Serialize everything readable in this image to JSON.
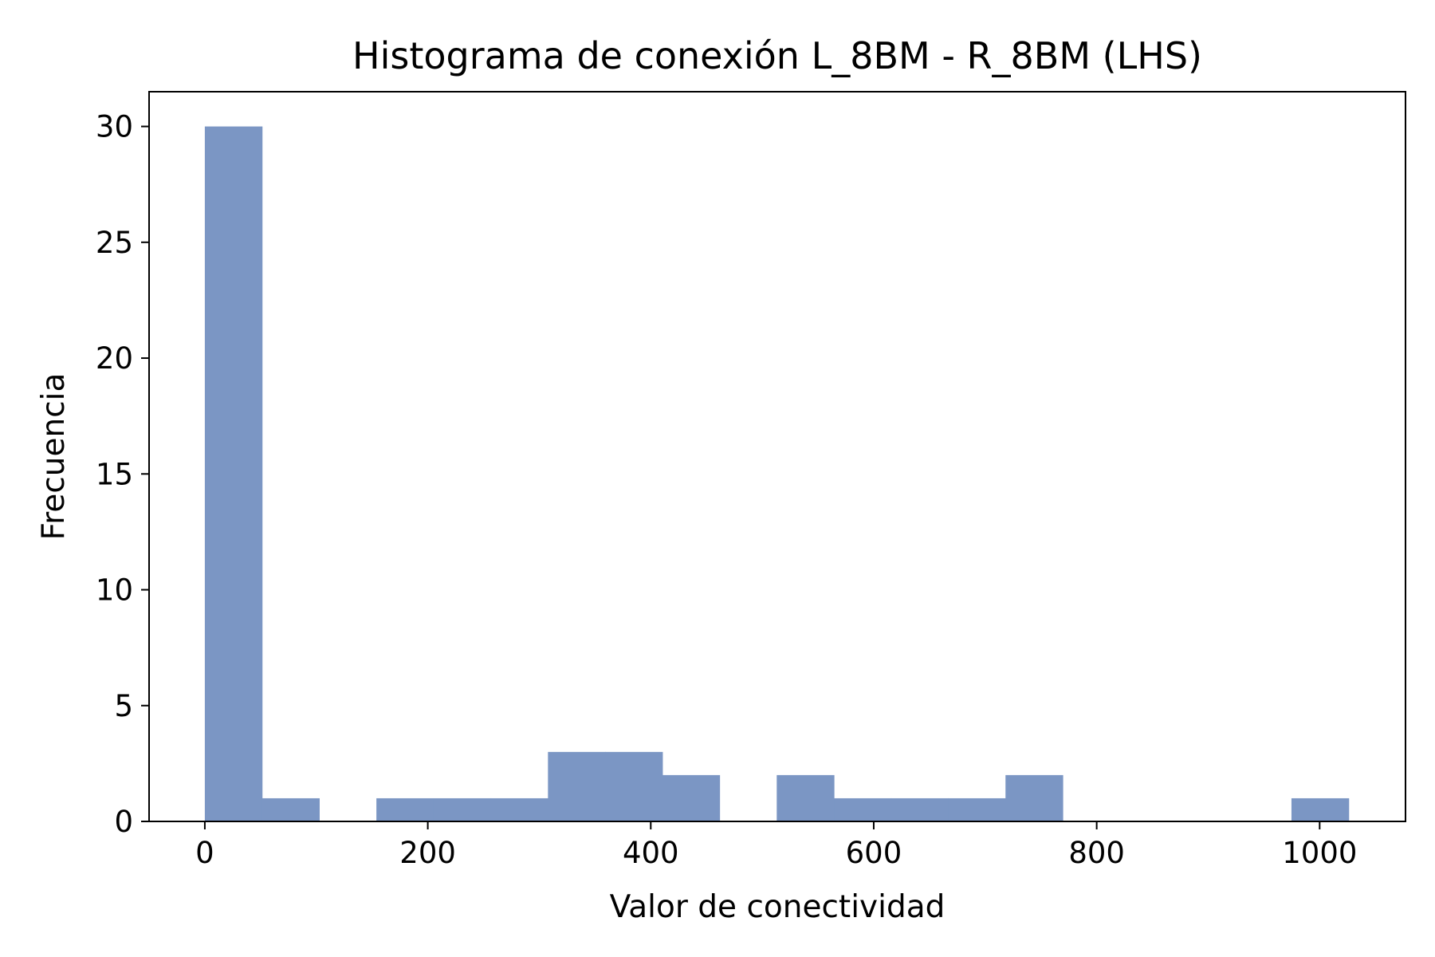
{
  "chart_data": {
    "type": "bar",
    "title": "Histograma de conexión L_8BM - R_8BM (LHS)",
    "xlabel": "Valor de conectividad",
    "ylabel": "Frecuencia",
    "xlim": [
      -50,
      1077
    ],
    "ylim": [
      0,
      31.5
    ],
    "xticks": [
      0,
      200,
      400,
      600,
      800,
      1000
    ],
    "yticks": [
      0,
      5,
      10,
      15,
      20,
      25,
      30
    ],
    "bin_edges": [
      0,
      51.3,
      102.6,
      153.9,
      205.2,
      256.5,
      307.8,
      359.1,
      410.4,
      461.7,
      513.0,
      564.3,
      615.6,
      666.9,
      718.2,
      769.5,
      820.8,
      872.1,
      923.4,
      974.7,
      1026.0
    ],
    "counts": [
      30,
      1,
      0,
      1,
      1,
      1,
      3,
      3,
      2,
      0,
      2,
      1,
      1,
      1,
      2,
      0,
      0,
      0,
      0,
      1
    ],
    "bar_color": "#7b96c4",
    "grid": false
  }
}
